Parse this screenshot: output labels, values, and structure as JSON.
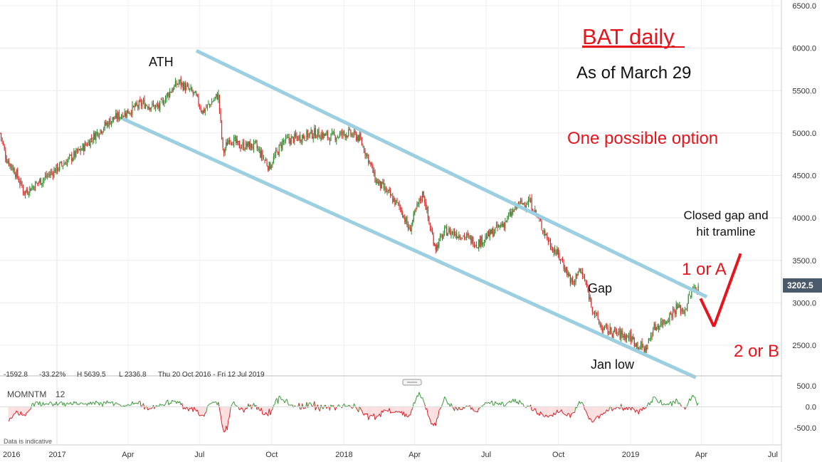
{
  "chart_data": {
    "type": "candlestick",
    "title": "BAT daily",
    "subtitle": "As of March 29",
    "y_axis": {
      "range": [
        2100,
        6500
      ],
      "ticks": [
        "6500.0",
        "6000.0",
        "5500.0",
        "5000.0",
        "4500.0",
        "4000.0",
        "3500.0",
        "3000.0",
        "2500.0"
      ]
    },
    "x_axis": {
      "labels": [
        {
          "label": "2016",
          "date": "2016-12-31"
        },
        {
          "label": "2017",
          "date": "2017-01-01"
        },
        {
          "label": "Apr",
          "date": "2017-04-01"
        },
        {
          "label": "Jul",
          "date": "2017-07-01"
        },
        {
          "label": "Oct",
          "date": "2017-10-01"
        },
        {
          "label": "2018",
          "date": "2018-01-01"
        },
        {
          "label": "Apr",
          "date": "2018-04-01"
        },
        {
          "label": "Jul",
          "date": "2018-07-01"
        },
        {
          "label": "Oct",
          "date": "2018-10-01"
        },
        {
          "label": "2019",
          "date": "2019-01-01"
        },
        {
          "label": "Apr",
          "date": "2019-04-01"
        },
        {
          "label": "Jul",
          "date": "2019-07-01"
        }
      ]
    },
    "price_keypoints": [
      [
        "2016-10-20",
        5000
      ],
      [
        "2016-10-28",
        4700
      ],
      [
        "2016-11-08",
        4550
      ],
      [
        "2016-11-20",
        4300
      ],
      [
        "2016-12-05",
        4400
      ],
      [
        "2016-12-20",
        4500
      ],
      [
        "2017-01-10",
        4650
      ],
      [
        "2017-01-31",
        4800
      ],
      [
        "2017-02-20",
        5000
      ],
      [
        "2017-03-10",
        5150
      ],
      [
        "2017-03-31",
        5250
      ],
      [
        "2017-04-20",
        5350
      ],
      [
        "2017-05-10",
        5300
      ],
      [
        "2017-05-25",
        5500
      ],
      [
        "2017-06-05",
        5600
      ],
      [
        "2017-06-25",
        5450
      ],
      [
        "2017-07-05",
        5250
      ],
      [
        "2017-07-15",
        5350
      ],
      [
        "2017-07-25",
        5450
      ],
      [
        "2017-07-31",
        4750
      ],
      [
        "2017-08-08",
        4950
      ],
      [
        "2017-08-20",
        4850
      ],
      [
        "2017-09-10",
        4850
      ],
      [
        "2017-09-28",
        4600
      ],
      [
        "2017-10-15",
        4900
      ],
      [
        "2017-11-05",
        4950
      ],
      [
        "2017-11-25",
        5000
      ],
      [
        "2017-12-15",
        4950
      ],
      [
        "2018-01-05",
        5000
      ],
      [
        "2018-01-20",
        4950
      ],
      [
        "2018-02-01",
        4700
      ],
      [
        "2018-02-10",
        4450
      ],
      [
        "2018-02-25",
        4300
      ],
      [
        "2018-03-15",
        4100
      ],
      [
        "2018-03-25",
        3850
      ],
      [
        "2018-04-05",
        4150
      ],
      [
        "2018-04-12",
        4300
      ],
      [
        "2018-04-20",
        3900
      ],
      [
        "2018-04-28",
        3650
      ],
      [
        "2018-05-10",
        3850
      ],
      [
        "2018-05-31",
        3800
      ],
      [
        "2018-06-20",
        3700
      ],
      [
        "2018-07-05",
        3800
      ],
      [
        "2018-07-25",
        3950
      ],
      [
        "2018-08-10",
        4150
      ],
      [
        "2018-08-25",
        4200
      ],
      [
        "2018-09-05",
        4000
      ],
      [
        "2018-09-20",
        3700
      ],
      [
        "2018-10-05",
        3500
      ],
      [
        "2018-10-20",
        3200
      ],
      [
        "2018-10-26",
        3400
      ],
      [
        "2018-11-02",
        3300
      ],
      [
        "2018-11-15",
        2900
      ],
      [
        "2018-11-25",
        2700
      ],
      [
        "2018-12-10",
        2650
      ],
      [
        "2018-12-31",
        2600
      ],
      [
        "2019-01-10",
        2500
      ],
      [
        "2019-01-20",
        2450
      ],
      [
        "2019-01-30",
        2700
      ],
      [
        "2019-02-15",
        2800
      ],
      [
        "2019-03-01",
        2950
      ],
      [
        "2019-03-10",
        2900
      ],
      [
        "2019-03-18",
        3100
      ],
      [
        "2019-03-25",
        3200
      ],
      [
        "2019-03-29",
        3150
      ]
    ],
    "tramlines": [
      {
        "from": [
          "2017-06-27",
          5970
        ],
        "to": [
          "2019-04-08",
          3070
        ]
      },
      {
        "from": [
          "2017-03-25",
          5170
        ],
        "to": [
          "2019-03-25",
          2120
        ]
      }
    ],
    "projection": [
      [
        "2019-03-31",
        3050
      ],
      [
        "2019-04-17",
        2720
      ],
      [
        "2019-05-21",
        3580
      ]
    ],
    "last_price": "3202.5",
    "annotations": [
      {
        "text": "ATH",
        "color": "#111111"
      },
      {
        "text": "One possible option",
        "color": "#e8141b"
      },
      {
        "text": "Closed gap and",
        "color": "#111111"
      },
      {
        "text": "hit tramline",
        "color": "#111111"
      },
      {
        "text": "1 or A",
        "color": "#e8141b"
      },
      {
        "text": "Gap",
        "color": "#111111"
      },
      {
        "text": "2 or B",
        "color": "#e8141b"
      },
      {
        "text": "Jan low",
        "color": "#111111"
      }
    ],
    "stats": {
      "change": "-1592.8",
      "change_pct": "-33.22%",
      "high": "H 5639.5",
      "low": "L 2336.8",
      "range": "Thu 20 Oct 2016 - Fri 12 Jul 2019"
    },
    "indicator": {
      "name": "MOMNTM",
      "period": "12",
      "range": [
        -750,
        600
      ],
      "ticks": [
        "500.0",
        "0.0",
        "-500.0"
      ],
      "positive_color": "#3a9a3a",
      "negative_color": "#d9202a"
    },
    "footnote": "Data is indicative",
    "colors": {
      "up": "#2e8b2e",
      "down": "#d42a2a",
      "tramline": "#9ccfe0",
      "title": "#e8141b",
      "price_tag": "#4a5a6a"
    }
  }
}
